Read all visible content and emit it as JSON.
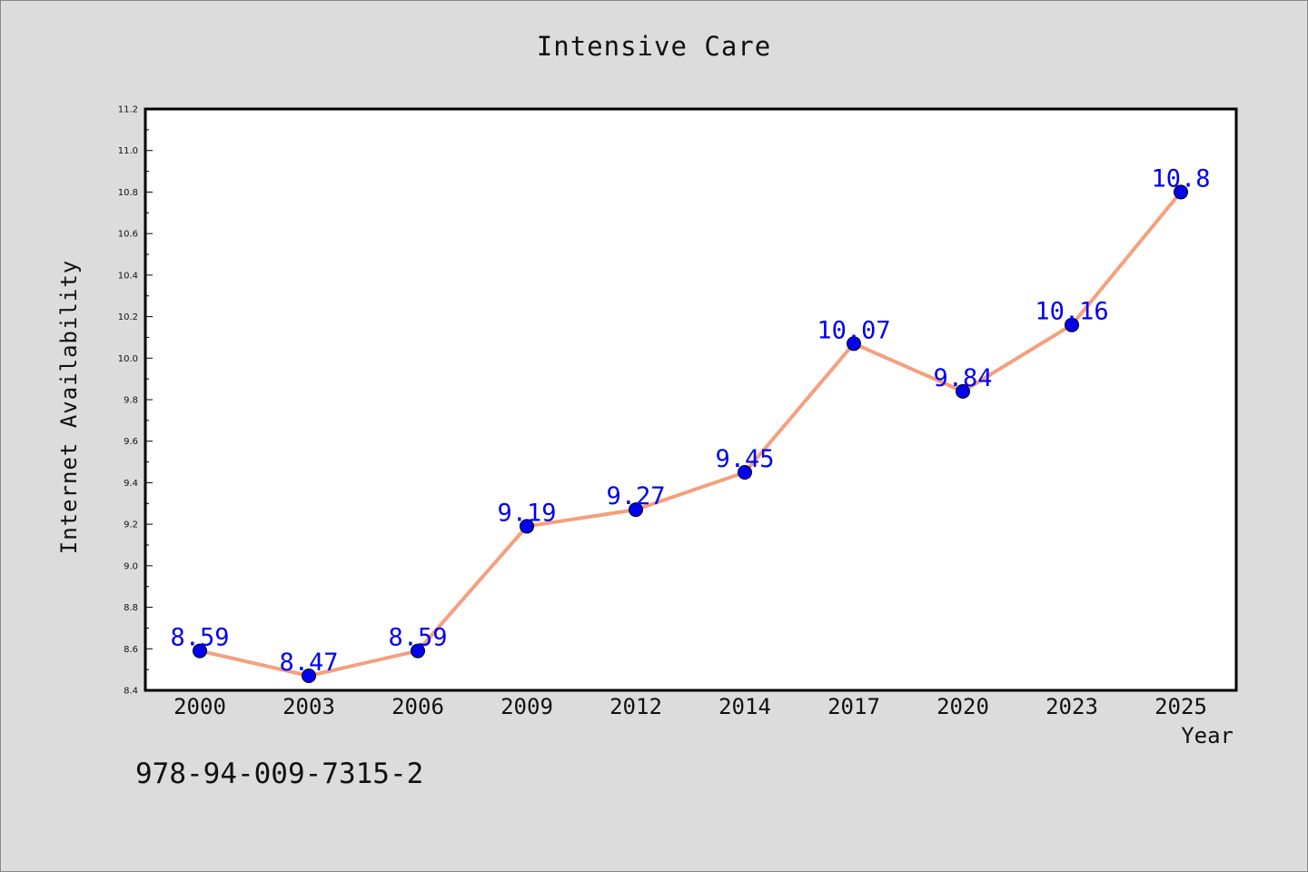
{
  "chart_data": {
    "type": "line",
    "title": "Intensive Care",
    "xlabel": "Year",
    "ylabel": "Internet Availability",
    "categories": [
      "2000",
      "2003",
      "2006",
      "2009",
      "2012",
      "2014",
      "2017",
      "2020",
      "2023",
      "2025"
    ],
    "series": [
      {
        "values": [
          8.59,
          8.47,
          8.59,
          9.19,
          9.27,
          9.45,
          10.07,
          9.84,
          10.16,
          10.8
        ],
        "line_color": "#f4a07e",
        "marker_color": "#0000ee",
        "label_color": "#0000ee"
      }
    ],
    "ylim": [
      8.4,
      11.2
    ],
    "yticks": [
      "8.4",
      "8.6",
      "8.8",
      "9.0",
      "9.2",
      "9.4",
      "9.6",
      "9.8",
      "10.0",
      "10.2",
      "10.4",
      "10.6",
      "10.8",
      "11.0",
      "11.2"
    ],
    "data_labels": [
      "8.59",
      "8.47",
      "8.59",
      "9.19",
      "9.27",
      "9.45",
      "10.07",
      "9.84",
      "10.16",
      "10.8"
    ],
    "grid": false,
    "legend": "none"
  },
  "footer": {
    "isbn": "978-94-009-7315-2"
  },
  "colors": {
    "background": "#dcdcdc",
    "plot_background": "#ffffff",
    "axis": "#000000"
  }
}
